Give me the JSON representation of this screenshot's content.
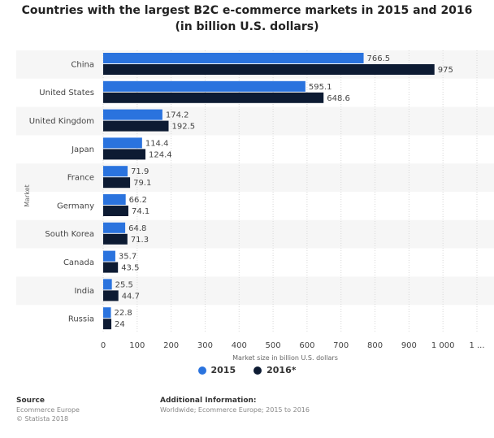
{
  "chart_data": {
    "type": "bar",
    "orientation": "horizontal",
    "title": "Countries with the largest B2C e-commerce markets in 2015 and 2016",
    "subtitle": "(in billion U.S. dollars)",
    "xlabel": "Market size in billion U.S. dollars",
    "ylabel": "Market",
    "xlim": [
      0,
      1100
    ],
    "x_ticks": [
      "0",
      "100",
      "200",
      "300",
      "400",
      "500",
      "600",
      "700",
      "800",
      "900",
      "1 000",
      "1 ..."
    ],
    "categories": [
      "China",
      "United States",
      "United Kingdom",
      "Japan",
      "France",
      "Germany",
      "South Korea",
      "Canada",
      "India",
      "Russia"
    ],
    "series": [
      {
        "name": "2015",
        "color": "#2a73de",
        "values": [
          766.5,
          595.1,
          174.2,
          114.4,
          71.9,
          66.2,
          64.8,
          35.7,
          25.5,
          22.8
        ],
        "labels": [
          "766.5",
          "595.1",
          "174.2",
          "114.4",
          "71.9",
          "66.2",
          "64.8",
          "35.7",
          "25.5",
          "22.8"
        ]
      },
      {
        "name": "2016*",
        "color": "#0d1b33",
        "values": [
          975,
          648.6,
          192.5,
          124.4,
          79.1,
          74.1,
          71.3,
          43.5,
          44.7,
          24
        ],
        "labels": [
          "975",
          "648.6",
          "192.5",
          "124.4",
          "79.1",
          "74.1",
          "71.3",
          "43.5",
          "44.7",
          "24"
        ]
      }
    ],
    "grid": true,
    "legend_position": "bottom"
  },
  "footer": {
    "source_heading": "Source",
    "source_lines": [
      "Ecommerce Europe",
      "© Statista 2018"
    ],
    "info_heading": "Additional Information:",
    "info_line": "Worldwide; Ecommerce Europe; 2015 to 2016"
  }
}
